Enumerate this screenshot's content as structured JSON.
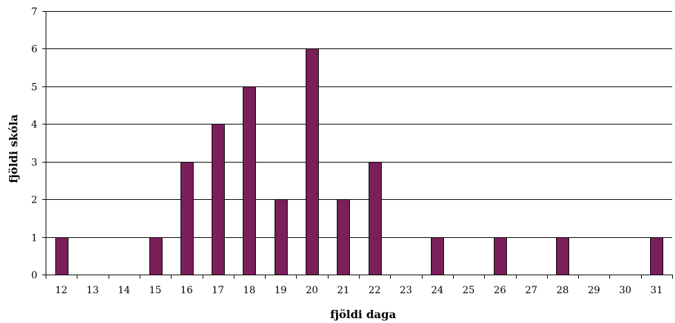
{
  "chart_data": {
    "type": "bar",
    "categories": [
      "12",
      "13",
      "14",
      "15",
      "16",
      "17",
      "18",
      "19",
      "20",
      "21",
      "22",
      "23",
      "24",
      "25",
      "26",
      "27",
      "28",
      "29",
      "30",
      "31"
    ],
    "values": [
      1,
      0,
      0,
      1,
      3,
      4,
      5,
      2,
      6,
      2,
      3,
      0,
      1,
      0,
      1,
      0,
      1,
      0,
      0,
      1
    ],
    "title": "",
    "xlabel": "fjöldi daga",
    "ylabel": "fjöldi skóla",
    "ylim": [
      0,
      7
    ],
    "yticks": [
      0,
      1,
      2,
      3,
      4,
      5,
      6,
      7
    ],
    "grid": true,
    "legend": "none",
    "colors": {
      "bar_fill": "#7B1F5A",
      "bar_stroke": "#000000",
      "grid": "#000000",
      "background": "#ffffff"
    }
  }
}
